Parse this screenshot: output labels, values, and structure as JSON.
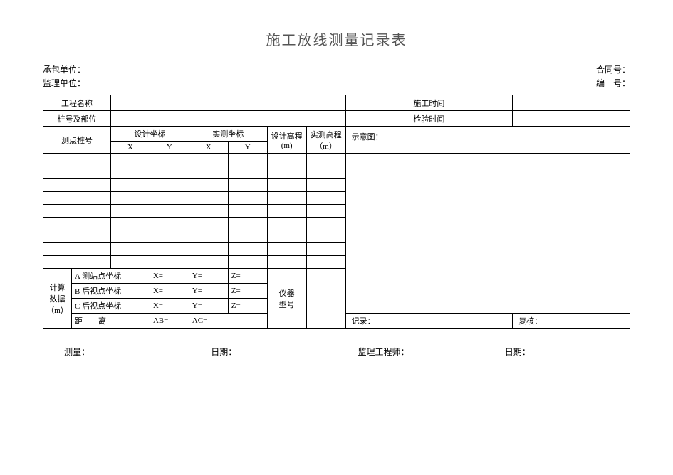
{
  "title": "施工放线测量记录表",
  "header": {
    "contractor_label": "承包单位：",
    "supervisor_label": "监理单位：",
    "contract_no_label": "合同号：",
    "serial_no_label": "编　号："
  },
  "top_block": {
    "project_name_label": "工程名称",
    "construction_time_label": "施工时间",
    "stake_position_label": "桩号及部位",
    "inspection_time_label": "检验时间"
  },
  "grid": {
    "point_stake_label": "测点桩号",
    "design_coord_label": "设计坐标",
    "measured_coord_label": "实测坐标",
    "design_elev_label": "设计高程",
    "design_elev_unit": "(m)",
    "measured_elev_label": "实测高程",
    "measured_elev_unit": "（m）",
    "x_label": "X",
    "y_label": "Y",
    "diagram_label": "示意图：",
    "num_data_rows": 9
  },
  "calc": {
    "section_label_line1": "计算",
    "section_label_line2": "数据",
    "section_label_line3": "（m）",
    "rowA_label": "A 测站点坐标",
    "rowB_label": "B 后视点坐标",
    "rowC_label": "C 后视点坐标",
    "x_eq": "X=",
    "y_eq": "Y=",
    "z_eq": "Z=",
    "dist_label": "距　　离",
    "ab_eq": "AB=",
    "ac_eq": "AC=",
    "instrument_label_line1": "仪器",
    "instrument_label_line2": "型号",
    "record_label": "记录：",
    "review_label": "复核："
  },
  "footer": {
    "measure_label": "测量：",
    "date_label": "日期：",
    "engineer_label": "监理工程师：",
    "date2_label": "日期："
  }
}
